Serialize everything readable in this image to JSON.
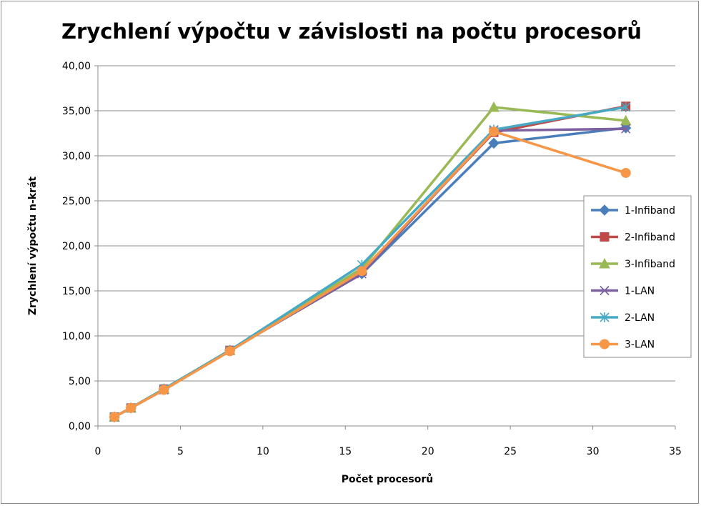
{
  "chart_data": {
    "type": "line",
    "title": "Zrychlení výpočtu v závislosti na počtu procesorů",
    "xlabel": "Počet procesorů",
    "ylabel": "Zrychlení výpočtu n-krát",
    "xlim": [
      0,
      35
    ],
    "ylim": [
      0,
      40
    ],
    "x_ticks": [
      "0",
      "5",
      "10",
      "15",
      "20",
      "25",
      "30",
      "35"
    ],
    "y_ticks": [
      "0,00",
      "5,00",
      "10,00",
      "15,00",
      "20,00",
      "25,00",
      "30,00",
      "35,00",
      "40,00"
    ],
    "grid": "horizontal",
    "legend_position": "right",
    "x": [
      1,
      2,
      4,
      8,
      16,
      24,
      32
    ],
    "series": [
      {
        "name": "1-Infiband",
        "color": "#4a7ebb",
        "marker": "diamond",
        "values": [
          1.0,
          2.0,
          4.1,
          8.4,
          16.9,
          31.4,
          33.1
        ]
      },
      {
        "name": "2-Infiband",
        "color": "#be4b48",
        "marker": "square",
        "values": [
          1.0,
          2.0,
          4.1,
          8.4,
          17.2,
          32.6,
          35.5
        ]
      },
      {
        "name": "3-Infiband",
        "color": "#98b954",
        "marker": "triangle",
        "values": [
          1.0,
          2.0,
          4.1,
          8.4,
          17.5,
          35.4,
          33.9
        ]
      },
      {
        "name": "1-LAN",
        "color": "#7d60a0",
        "marker": "x",
        "values": [
          1.0,
          2.0,
          4.0,
          8.4,
          16.9,
          32.8,
          33.0
        ]
      },
      {
        "name": "2-LAN",
        "color": "#46aac5",
        "marker": "star",
        "values": [
          1.0,
          2.0,
          4.1,
          8.4,
          17.9,
          32.9,
          35.4
        ]
      },
      {
        "name": "3-LAN",
        "color": "#f79646",
        "marker": "circle",
        "values": [
          1.0,
          2.0,
          4.0,
          8.3,
          17.2,
          32.7,
          28.1
        ]
      }
    ]
  }
}
